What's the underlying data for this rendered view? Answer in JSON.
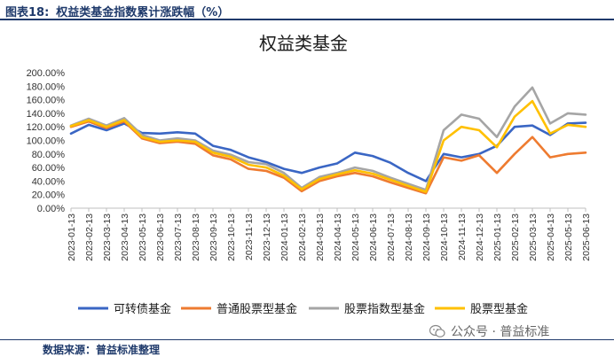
{
  "caption": {
    "label": "图表18:",
    "title": "权益类基金指数累计涨跌幅（%）"
  },
  "source": "数据来源：普益标准整理",
  "watermark": "公众号 · 普益标准",
  "colors": {
    "blue": "#3A66C4",
    "orange": "#EE7B30",
    "gray": "#A5A5A5",
    "gold": "#FFC000"
  },
  "chart_data": {
    "type": "line",
    "title": "权益类基金",
    "xlabel": "",
    "ylabel": "",
    "ylim": [
      0,
      200
    ],
    "yticks": [
      "0.00%",
      "20.00%",
      "40.00%",
      "60.00%",
      "80.00%",
      "100.00%",
      "120.00%",
      "140.00%",
      "160.00%",
      "180.00%",
      "200.00%"
    ],
    "grid": false,
    "legend_position": "bottom",
    "x": [
      "2023-01-13",
      "2023-02-13",
      "2023-03-13",
      "2023-04-13",
      "2023-05-13",
      "2023-06-13",
      "2023-07-13",
      "2023-08-13",
      "2023-09-13",
      "2023-10-13",
      "2023-11-13",
      "2023-12-13",
      "2024-01-13",
      "2024-02-13",
      "2024-03-13",
      "2024-04-13",
      "2024-05-13",
      "2024-06-13",
      "2024-07-13",
      "2024-08-13",
      "2024-09-13",
      "2024-10-13",
      "2024-11-13",
      "2024-12-13",
      "2025-01-13",
      "2025-02-13",
      "2025-03-13",
      "2025-04-13",
      "2025-05-13",
      "2025-06-13"
    ],
    "series": [
      {
        "name": "可转债基金",
        "color": "#3A66C4",
        "values": [
          110,
          123,
          115,
          125,
          111,
          110,
          112,
          110,
          92,
          86,
          75,
          68,
          58,
          52,
          60,
          66,
          82,
          77,
          67,
          52,
          40,
          80,
          75,
          80,
          92,
          120,
          122,
          108,
          125,
          126
        ]
      },
      {
        "name": "普通股票型基金",
        "color": "#EE7B30",
        "values": [
          120,
          128,
          118,
          128,
          103,
          96,
          98,
          95,
          78,
          72,
          58,
          55,
          45,
          25,
          40,
          47,
          52,
          47,
          38,
          30,
          22,
          75,
          70,
          78,
          52,
          80,
          105,
          75,
          80,
          82
        ]
      },
      {
        "name": "股票指数型基金",
        "color": "#A5A5A5",
        "values": [
          122,
          132,
          122,
          133,
          108,
          100,
          103,
          100,
          85,
          79,
          68,
          65,
          52,
          30,
          46,
          52,
          60,
          55,
          45,
          36,
          27,
          115,
          138,
          132,
          105,
          150,
          178,
          125,
          140,
          138
        ]
      },
      {
        "name": "股票型基金",
        "color": "#FFC000",
        "values": [
          121,
          130,
          120,
          130,
          105,
          98,
          100,
          98,
          82,
          76,
          64,
          60,
          48,
          28,
          43,
          50,
          56,
          51,
          42,
          33,
          24,
          100,
          120,
          115,
          90,
          135,
          158,
          110,
          123,
          120
        ]
      }
    ]
  }
}
